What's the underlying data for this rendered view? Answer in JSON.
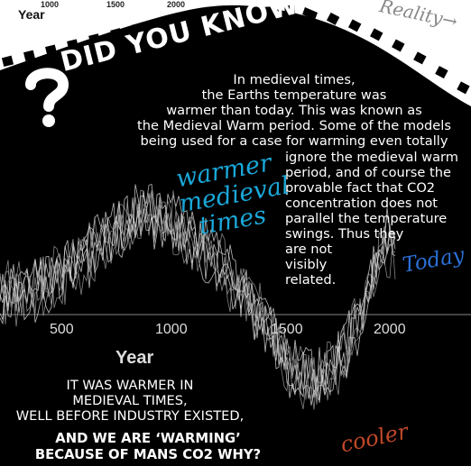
{
  "top_strip": {
    "year_label": "Year",
    "tick_labels": [
      "1000",
      "1500",
      "2000"
    ],
    "reality_label": "Reality"
  },
  "headline": "DID YOU KNOW",
  "paragraph": {
    "intro": "In medieval times,\nthe Earths temperature was\nwarmer than today. This was known as\nthe Medieval Warm period. Some of the models\nbeing used for a case for warming even totally",
    "continued": "ignore the medieval warm\nperiod, and of course the\nprovable fact that CO2\nconcentration does not\nparallel the temperature\nswings. Thus they",
    "tail": "are not\nvisibly\nrelated."
  },
  "annotations": {
    "warmer": "warmer\nmedieval\ntimes",
    "today": "Today",
    "cooler": "cooler"
  },
  "axis": {
    "tick_labels": [
      "500",
      "1000",
      "1500",
      "2000"
    ],
    "title": "Year"
  },
  "footer": {
    "line1": "IT WAS WARMER IN\nMEDIEVAL TIMES,\nWELL BEFORE INDUSTRY EXISTED,",
    "line2": "AND WE ARE ‘WARMING’\nBECAUSE OF MANS CO2 WHY?"
  },
  "colors": {
    "background": "#000000",
    "band": "#ffffff",
    "warmer": "#1aa7d8",
    "today": "#2b6fd6",
    "cooler": "#c04828"
  }
}
